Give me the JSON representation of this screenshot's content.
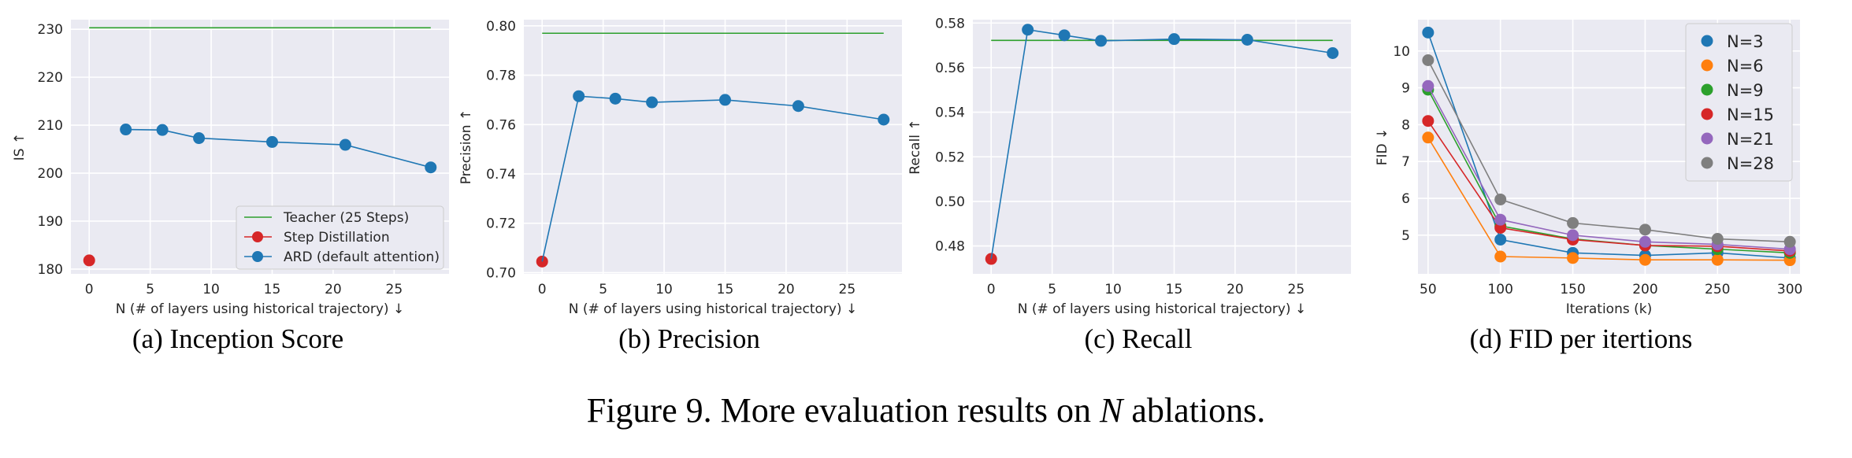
{
  "figure_caption": {
    "prefix": "Figure 9. More evaluation results on ",
    "variable": "N",
    "suffix": " ablations."
  },
  "chart_data": [
    {
      "type": "line",
      "panel_caption": "(a) Inception Score",
      "xlabel": "N (# of layers using historical trajectory) ↓",
      "ylabel": "IS ↑",
      "xlim": [
        -1.5,
        29.5
      ],
      "ylim": [
        179,
        232
      ],
      "xticks": [
        0,
        5,
        10,
        15,
        20,
        25
      ],
      "yticks": [
        180,
        190,
        200,
        210,
        220,
        230
      ],
      "grid": true,
      "legend_position": "lower-right",
      "series": [
        {
          "name": "Teacher (25 Steps)",
          "kind": "hline",
          "color": "#2ca02c",
          "x": [
            0,
            28
          ],
          "y": 230.3
        },
        {
          "name": "Step Distillation",
          "kind": "point",
          "color": "#d62728",
          "x": [
            0
          ],
          "y": [
            181.8
          ]
        },
        {
          "name": "ARD (default attention)",
          "kind": "line",
          "color": "#1f77b4",
          "x": [
            3,
            6,
            9,
            15,
            21,
            28
          ],
          "y": [
            209.1,
            209.0,
            207.3,
            206.5,
            205.9,
            201.2
          ]
        }
      ]
    },
    {
      "type": "line",
      "panel_caption": "(b) Precision",
      "xlabel": "N (# of layers using historical trajectory) ↓",
      "ylabel": "Precision ↑",
      "xlim": [
        -1.5,
        29.5
      ],
      "ylim": [
        0.6995,
        0.8025
      ],
      "xticks": [
        0,
        5,
        10,
        15,
        20,
        25
      ],
      "yticks": [
        0.7,
        0.72,
        0.74,
        0.76,
        0.78,
        0.8
      ],
      "ytick_labels": [
        "0.70",
        "0.72",
        "0.74",
        "0.76",
        "0.78",
        "0.80"
      ],
      "grid": true,
      "series": [
        {
          "name": "Teacher (25 Steps)",
          "kind": "hline",
          "color": "#2ca02c",
          "x": [
            0,
            28
          ],
          "y": 0.797
        },
        {
          "name": "Step Distillation",
          "kind": "point",
          "color": "#d62728",
          "x": [
            0
          ],
          "y": [
            0.7045
          ]
        },
        {
          "name": "ARD (default attention)",
          "kind": "line",
          "color": "#1f77b4",
          "x": [
            0,
            3,
            6,
            9,
            15,
            21,
            28
          ],
          "y": [
            0.7045,
            0.7715,
            0.7705,
            0.769,
            0.77,
            0.7675,
            0.762
          ]
        }
      ]
    },
    {
      "type": "line",
      "panel_caption": "(c) Recall",
      "xlabel": "N (# of layers using historical trajectory) ↓",
      "ylabel": "Recall ↑",
      "xlim": [
        -1.5,
        29.5
      ],
      "ylim": [
        0.4675,
        0.5815
      ],
      "xticks": [
        0,
        5,
        10,
        15,
        20,
        25
      ],
      "yticks": [
        0.48,
        0.5,
        0.52,
        0.54,
        0.56,
        0.58
      ],
      "ytick_labels": [
        "0.48",
        "0.50",
        "0.52",
        "0.54",
        "0.56",
        "0.58"
      ],
      "grid": true,
      "series": [
        {
          "name": "Teacher (25 Steps)",
          "kind": "hline",
          "color": "#2ca02c",
          "x": [
            0,
            28
          ],
          "y": 0.5722
        },
        {
          "name": "Step Distillation",
          "kind": "point",
          "color": "#d62728",
          "x": [
            0
          ],
          "y": [
            0.4742
          ]
        },
        {
          "name": "ARD (default attention)",
          "kind": "line",
          "color": "#1f77b4",
          "x": [
            0,
            3,
            6,
            9,
            15,
            21,
            28
          ],
          "y": [
            0.4742,
            0.577,
            0.5745,
            0.572,
            0.5728,
            0.5725,
            0.5665
          ]
        }
      ]
    },
    {
      "type": "line",
      "panel_caption": "(d) FID per itertions",
      "xlabel": "Iterations (k)",
      "ylabel": "FID ↓",
      "xlim": [
        43,
        307
      ],
      "ylim": [
        3.95,
        10.85
      ],
      "xticks": [
        50,
        100,
        150,
        200,
        250,
        300
      ],
      "yticks": [
        5,
        6,
        7,
        8,
        9,
        10
      ],
      "grid": true,
      "legend_position": "upper-right",
      "series": [
        {
          "name": "N=3",
          "color": "#1f77b4",
          "x": [
            50,
            100,
            150,
            200,
            250,
            300
          ],
          "y": [
            10.5,
            4.88,
            4.52,
            4.45,
            4.52,
            4.38
          ]
        },
        {
          "name": "N=6",
          "color": "#ff7f0e",
          "x": [
            50,
            100,
            150,
            200,
            250,
            300
          ],
          "y": [
            7.65,
            4.42,
            4.38,
            4.33,
            4.33,
            4.32
          ]
        },
        {
          "name": "N=9",
          "color": "#2ca02c",
          "x": [
            50,
            100,
            150,
            200,
            250,
            300
          ],
          "y": [
            8.95,
            5.25,
            4.9,
            4.72,
            4.62,
            4.52
          ]
        },
        {
          "name": "N=15",
          "color": "#d62728",
          "x": [
            50,
            100,
            150,
            200,
            250,
            300
          ],
          "y": [
            8.1,
            5.2,
            4.88,
            4.72,
            4.7,
            4.57
          ]
        },
        {
          "name": "N=21",
          "color": "#9467bd",
          "x": [
            50,
            100,
            150,
            200,
            250,
            300
          ],
          "y": [
            9.05,
            5.42,
            5.0,
            4.82,
            4.75,
            4.62
          ]
        },
        {
          "name": "N=28",
          "color": "#7f7f7f",
          "x": [
            50,
            100,
            150,
            200,
            250,
            300
          ],
          "y": [
            9.75,
            5.97,
            5.33,
            5.15,
            4.9,
            4.82
          ]
        }
      ]
    }
  ]
}
